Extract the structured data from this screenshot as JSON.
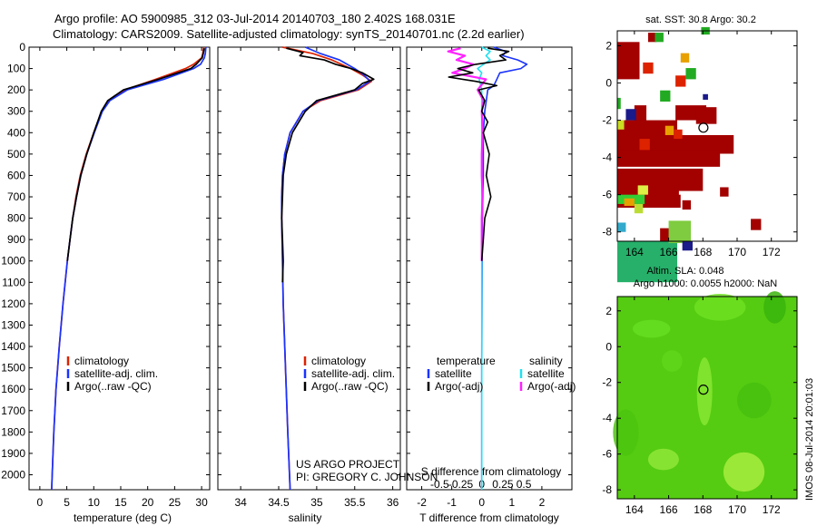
{
  "figure": {
    "title_line1": "Argo profile: AO 5900985_312 03-Jul-2014 20140703_180 2.402S 168.031E",
    "title_line2": "Climatology: CARS2009. Satellite-adjusted climatology: synTS_20140701.nc (2.2d earlier)",
    "credit_line1": "US ARGO PROJECT",
    "credit_line2": "PI: GREGORY C. JOHNSON",
    "stamp": "IMOS 08-Jul-2014 20:01:03"
  },
  "colors": {
    "climatology": "#dd2200",
    "satellite": "#1a33ff",
    "argo": "#000000",
    "sat_salinity": "#22e0f0",
    "argo_salinity": "#ff22ff"
  },
  "chart_data": [
    {
      "type": "line",
      "name": "temperature-profile",
      "xlabel": "temperature (deg C)",
      "ylabel": "",
      "xlim": [
        -2,
        31.5
      ],
      "ylim": [
        2070,
        0
      ],
      "xticks": [
        "0",
        "5",
        "10",
        "15",
        "20",
        "25",
        "30"
      ],
      "yticks": [
        "0",
        "100",
        "200",
        "300",
        "400",
        "500",
        "600",
        "700",
        "800",
        "900",
        "1000",
        "1100",
        "1200",
        "1300",
        "1400",
        "1500",
        "1600",
        "1700",
        "1800",
        "1900",
        "2000"
      ],
      "legend": [
        "climatology",
        "satellite-adj. clim.",
        "Argo(..raw -QC)"
      ],
      "series": [
        {
          "name": "climatology",
          "depth": [
            0,
            30,
            50,
            80,
            100,
            150,
            200,
            250,
            300,
            400,
            500,
            600,
            700,
            800,
            900,
            1000,
            1200,
            1400,
            1600,
            1800,
            2000,
            2070
          ],
          "values": [
            30.4,
            30.2,
            30.0,
            28.5,
            27.0,
            21.5,
            15.8,
            12.8,
            11.5,
            10.0,
            8.6,
            7.5,
            6.7,
            6.1,
            5.6,
            5.1,
            4.3,
            3.6,
            3.0,
            2.6,
            2.3,
            2.2
          ]
        },
        {
          "name": "satellite-adj. clim.",
          "depth": [
            0,
            30,
            50,
            80,
            100,
            150,
            200,
            250,
            300,
            400,
            500,
            600,
            700,
            800,
            900,
            1000,
            1200,
            1400,
            1600,
            1800,
            2000,
            2070
          ],
          "values": [
            30.8,
            30.7,
            30.5,
            29.8,
            28.5,
            23.0,
            16.2,
            13.0,
            11.6,
            10.1,
            8.7,
            7.6,
            6.8,
            6.1,
            5.6,
            5.1,
            4.3,
            3.6,
            3.0,
            2.6,
            2.3,
            2.2
          ]
        },
        {
          "name": "Argo(..raw -QC)",
          "depth": [
            5,
            30,
            50,
            80,
            100,
            150,
            200,
            250,
            300,
            400,
            500,
            600,
            700,
            800,
            900,
            1000
          ],
          "values": [
            30.5,
            30.3,
            30.1,
            29.0,
            28.0,
            22.0,
            15.5,
            12.6,
            11.4,
            10.0,
            8.7,
            7.6,
            6.8,
            6.1,
            5.6,
            5.1
          ]
        }
      ]
    },
    {
      "type": "line",
      "name": "salinity-profile",
      "xlabel": "salinity",
      "ylabel": "",
      "xlim": [
        33.7,
        36.1
      ],
      "ylim": [
        2070,
        0
      ],
      "xticks": [
        "34",
        "34.5",
        "35",
        "35.5",
        "36"
      ],
      "legend": [
        "climatology",
        "satellite-adj. clim.",
        "Argo(..raw -QC)"
      ],
      "series": [
        {
          "name": "climatology",
          "depth": [
            0,
            30,
            60,
            100,
            130,
            160,
            200,
            250,
            300,
            400,
            500,
            600,
            700,
            800,
            1000,
            1200,
            1500,
            1800,
            2070
          ],
          "values": [
            34.55,
            34.95,
            35.2,
            35.45,
            35.6,
            35.72,
            35.55,
            35.05,
            34.82,
            34.65,
            34.58,
            34.55,
            34.54,
            34.54,
            34.55,
            34.56,
            34.59,
            34.62,
            34.65
          ]
        },
        {
          "name": "satellite-adj. clim.",
          "depth": [
            0,
            30,
            60,
            100,
            130,
            160,
            200,
            250,
            300,
            400,
            500,
            600,
            700,
            800,
            1000,
            1200,
            1500,
            1800,
            2070
          ],
          "values": [
            34.85,
            35.05,
            35.3,
            35.5,
            35.62,
            35.7,
            35.52,
            35.02,
            34.82,
            34.65,
            34.58,
            34.55,
            34.54,
            34.54,
            34.55,
            34.56,
            34.59,
            34.62,
            34.65
          ]
        },
        {
          "name": "Argo(..raw -QC)",
          "depth": [
            5,
            25,
            40,
            60,
            80,
            100,
            120,
            150,
            170,
            200,
            250,
            300,
            400,
            500,
            600,
            700,
            800,
            900,
            1000,
            1100
          ],
          "values": [
            34.6,
            34.82,
            34.78,
            35.1,
            35.25,
            35.45,
            35.6,
            35.75,
            35.6,
            35.5,
            35.0,
            34.85,
            34.68,
            34.6,
            34.56,
            34.55,
            34.54,
            34.55,
            34.56,
            34.55
          ]
        }
      ]
    },
    {
      "type": "line",
      "name": "difference-profile",
      "xlabel_top": "S difference from climatology",
      "xlabel": "T difference from climatology",
      "xlim": [
        -2.5,
        3
      ],
      "ylim": [
        2070,
        0
      ],
      "xticks_T": [
        "-2",
        "-1",
        "0",
        "1",
        "2"
      ],
      "xticks_S": [
        "-0.5",
        "-0.25",
        "0",
        "0.25",
        "0.5"
      ],
      "legend_titles": [
        "temperature",
        "salinity"
      ],
      "legend": [
        "satellite",
        "Argo(-adj)",
        "satellite",
        "Argo(-adj)"
      ],
      "series": [
        {
          "name": "temperature satellite",
          "depth": [
            0,
            20,
            40,
            60,
            80,
            100,
            120,
            150,
            180,
            200,
            250,
            300,
            400,
            600,
            800,
            1000,
            1500,
            2070
          ],
          "values": [
            0.4,
            0.8,
            0.7,
            1.2,
            1.5,
            1.3,
            0.6,
            0.5,
            0.4,
            0.2,
            0.15,
            0.1,
            0.05,
            0.05,
            0.02,
            0.01,
            0.0,
            0.0
          ]
        },
        {
          "name": "temperature Argo(-adj)",
          "depth": [
            5,
            20,
            40,
            60,
            80,
            100,
            120,
            140,
            160,
            180,
            200,
            250,
            300,
            350,
            400,
            500,
            600,
            700,
            800,
            900,
            1000
          ],
          "values": [
            0.2,
            0.9,
            0.6,
            0.8,
            -0.2,
            -0.8,
            -0.3,
            -1.1,
            -0.2,
            0.5,
            -0.1,
            0.1,
            0.0,
            0.2,
            0.05,
            0.25,
            0.15,
            0.3,
            0.1,
            0.05,
            0.0
          ]
        },
        {
          "name": "salinity satellite",
          "depth": [
            0,
            20,
            40,
            60,
            80,
            100,
            120,
            150,
            200,
            300,
            400,
            600,
            800,
            1000,
            1500,
            2070
          ],
          "values": [
            0.0,
            0.1,
            0.05,
            0.1,
            0.02,
            -0.05,
            0.0,
            -0.03,
            0.0,
            0.0,
            0.0,
            0.0,
            0.0,
            0.0,
            0.0,
            0.0
          ]
        },
        {
          "name": "salinity Argo(-adj)",
          "depth": [
            5,
            20,
            40,
            60,
            80,
            100,
            120,
            150,
            200,
            250,
            300,
            400,
            500,
            600,
            700,
            800,
            1000
          ],
          "values": [
            -0.25,
            -0.4,
            -0.2,
            -0.3,
            -0.1,
            -0.2,
            -0.35,
            0.05,
            -0.05,
            0.02,
            0.0,
            0.01,
            0.0,
            0.0,
            0.01,
            0.0,
            0.0
          ]
        }
      ]
    },
    {
      "type": "heatmap",
      "name": "sst-map",
      "title": "sat. SST: 30.8 Argo: 30.2",
      "xlim": [
        163,
        173.5
      ],
      "ylim": [
        -8.5,
        2.8
      ],
      "xticks": [
        "164",
        "166",
        "168",
        "170",
        "172"
      ],
      "yticks": [
        "2",
        "0",
        "-2",
        "-4",
        "-6",
        "-8"
      ],
      "marker": {
        "lon": 168.031,
        "lat": -2.402
      }
    },
    {
      "type": "heatmap",
      "name": "sla-map",
      "title_line1": "Altim. SLA: 0.048",
      "title_line2": "Argo h1000: 0.0055 h2000: NaN",
      "xlim": [
        163,
        173.5
      ],
      "ylim": [
        -8.5,
        2.8
      ],
      "xticks": [
        "164",
        "166",
        "168",
        "170",
        "172"
      ],
      "yticks": [
        "2",
        "0",
        "-2",
        "-4",
        "-6",
        "-8"
      ],
      "marker": {
        "lon": 168.031,
        "lat": -2.402
      }
    }
  ]
}
